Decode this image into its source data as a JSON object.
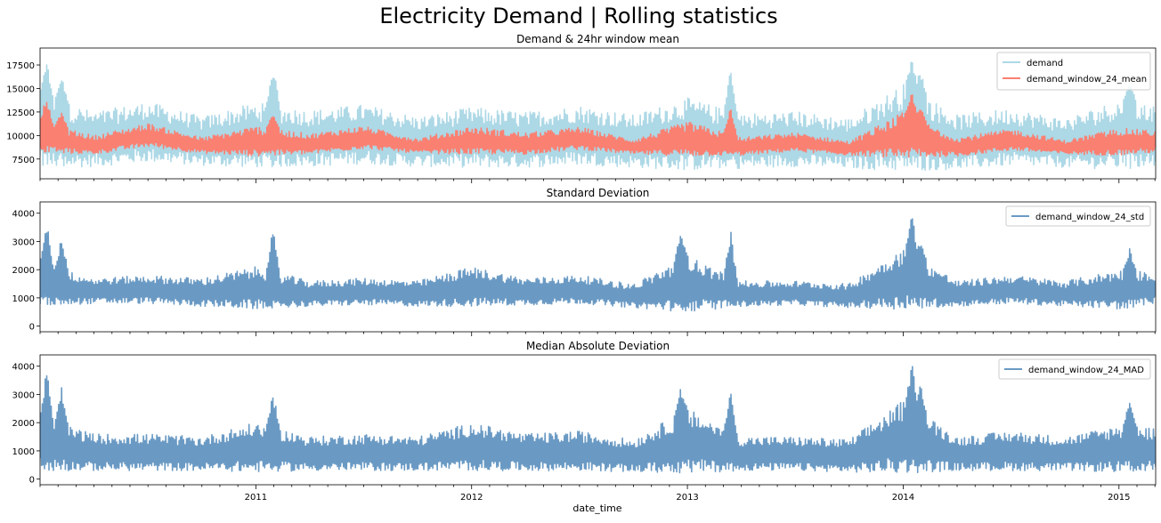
{
  "figure": {
    "suptitle": "Electricity Demand | Rolling statistics",
    "xlabel": "date_time"
  },
  "colors": {
    "demand": "#add8e6",
    "mean": "#fa8072",
    "std": "#6a9ac4",
    "mad": "#6a9ac4",
    "axes": "#000000",
    "background": "#ffffff"
  },
  "chart_data": [
    {
      "type": "line",
      "title": "Demand & 24hr window mean",
      "xlabel": "",
      "ylabel": "",
      "xlim": [
        2010.0,
        2015.17
      ],
      "ylim": [
        5400,
        19300
      ],
      "yticks": [
        7500,
        10000,
        12500,
        15000,
        17500
      ],
      "ytick_labels": [
        "7500",
        "10000",
        "12500",
        "15000",
        "17500"
      ],
      "grid": false,
      "legend": "top-right",
      "series": [
        {
          "name": "demand",
          "color": "#add8e6",
          "kind": "band",
          "x": [
            2010.0,
            2010.25,
            2010.5,
            2010.75,
            2011.0,
            2011.25,
            2011.5,
            2011.75,
            2012.0,
            2012.25,
            2012.5,
            2012.75,
            2013.0,
            2013.25,
            2013.5,
            2013.75,
            2014.0,
            2014.25,
            2014.5,
            2014.75,
            2015.0,
            2015.17
          ],
          "low": [
            6500,
            6700,
            7200,
            6800,
            6600,
            6700,
            7000,
            6700,
            6600,
            6600,
            6900,
            6600,
            6300,
            6500,
            6700,
            6500,
            6200,
            6400,
            6800,
            6600,
            6400,
            6800
          ],
          "high": [
            14500,
            12500,
            13600,
            12000,
            13500,
            12700,
            13300,
            12000,
            13000,
            12500,
            13200,
            12200,
            14000,
            12300,
            12600,
            11800,
            15500,
            12200,
            12900,
            11800,
            13800,
            13200
          ],
          "peaks": [
            [
              2010.03,
              18300
            ],
            [
              2010.1,
              16600
            ],
            [
              2011.08,
              17800
            ],
            [
              2013.2,
              17600
            ],
            [
              2014.04,
              18600
            ],
            [
              2014.08,
              17200
            ],
            [
              2015.05,
              16200
            ]
          ]
        },
        {
          "name": "demand_window_24_mean",
          "color": "#fa8072",
          "kind": "line",
          "x": [
            2010.0,
            2010.25,
            2010.5,
            2010.75,
            2011.0,
            2011.25,
            2011.5,
            2011.75,
            2012.0,
            2012.25,
            2012.5,
            2012.75,
            2013.0,
            2013.25,
            2013.5,
            2013.75,
            2014.0,
            2014.25,
            2014.5,
            2014.75,
            2015.0,
            2015.17
          ],
          "low": [
            8200,
            8000,
            8800,
            8100,
            7800,
            8000,
            8600,
            8100,
            8000,
            8000,
            8500,
            8000,
            7800,
            7900,
            8300,
            7900,
            7600,
            7800,
            8400,
            8000,
            7900,
            8200
          ],
          "high": [
            11500,
            10000,
            11300,
            9800,
            11000,
            10200,
            11000,
            9700,
            11000,
            10300,
            10900,
            9600,
            11500,
            9800,
            10300,
            9400,
            12500,
            9800,
            10700,
            9500,
            10800,
            10500
          ],
          "peaks": [
            [
              2010.03,
              14500
            ],
            [
              2010.1,
              12600
            ],
            [
              2011.08,
              12800
            ],
            [
              2013.2,
              13100
            ],
            [
              2014.04,
              14700
            ],
            [
              2014.08,
              13000
            ]
          ]
        }
      ]
    },
    {
      "type": "line",
      "title": "Standard Deviation",
      "xlabel": "",
      "ylabel": "",
      "xlim": [
        2010.0,
        2015.17
      ],
      "ylim": [
        -200,
        4400
      ],
      "yticks": [
        0,
        1000,
        2000,
        3000,
        4000
      ],
      "ytick_labels": [
        "0",
        "1000",
        "2000",
        "3000",
        "4000"
      ],
      "grid": false,
      "legend": "top-right",
      "series": [
        {
          "name": "demand_window_24_std",
          "color": "#6a9ac4",
          "kind": "line",
          "x": [
            2010.0,
            2010.25,
            2010.5,
            2010.75,
            2011.0,
            2011.25,
            2011.5,
            2011.75,
            2012.0,
            2012.25,
            2012.5,
            2012.75,
            2013.0,
            2013.25,
            2013.5,
            2013.75,
            2014.0,
            2014.25,
            2014.5,
            2014.75,
            2015.0,
            2015.17
          ],
          "low": [
            700,
            800,
            800,
            700,
            600,
            700,
            750,
            700,
            700,
            750,
            800,
            650,
            500,
            700,
            750,
            650,
            600,
            700,
            800,
            700,
            600,
            800
          ],
          "high": [
            2200,
            1700,
            1800,
            1700,
            2100,
            1600,
            1700,
            1600,
            2100,
            1700,
            1800,
            1500,
            2500,
            1600,
            1600,
            1500,
            2800,
            1600,
            1800,
            1600,
            2000,
            1900
          ],
          "peaks": [
            [
              2010.03,
              4100
            ],
            [
              2010.1,
              3300
            ],
            [
              2011.08,
              3550
            ],
            [
              2012.97,
              3400
            ],
            [
              2013.2,
              3450
            ],
            [
              2014.04,
              4100
            ],
            [
              2014.08,
              3000
            ],
            [
              2015.05,
              2800
            ]
          ]
        }
      ]
    },
    {
      "type": "line",
      "title": "Median Absolute Deviation",
      "xlabel": "date_time",
      "ylabel": "",
      "xlim": [
        2010.0,
        2015.17
      ],
      "ylim": [
        -200,
        4400
      ],
      "yticks": [
        0,
        1000,
        2000,
        3000,
        4000
      ],
      "ytick_labels": [
        "0",
        "1000",
        "2000",
        "3000",
        "4000"
      ],
      "xticks": [
        2011,
        2012,
        2013,
        2014,
        2015
      ],
      "xtick_labels": [
        "2011",
        "2012",
        "2013",
        "2014",
        "2015"
      ],
      "grid": false,
      "legend": "top-right",
      "series": [
        {
          "name": "demand_window_24_MAD",
          "color": "#6a9ac4",
          "kind": "line",
          "x": [
            2010.0,
            2010.25,
            2010.5,
            2010.75,
            2011.0,
            2011.25,
            2011.5,
            2011.75,
            2012.0,
            2012.25,
            2012.5,
            2012.75,
            2013.0,
            2013.25,
            2013.5,
            2013.75,
            2014.0,
            2014.25,
            2014.5,
            2014.75,
            2015.0,
            2015.17
          ],
          "low": [
            300,
            300,
            300,
            300,
            250,
            300,
            300,
            300,
            300,
            300,
            300,
            250,
            200,
            300,
            300,
            250,
            200,
            300,
            300,
            300,
            250,
            300
          ],
          "high": [
            2200,
            1600,
            1600,
            1500,
            2000,
            1500,
            1600,
            1500,
            2000,
            1600,
            1700,
            1400,
            2500,
            1500,
            1500,
            1400,
            2800,
            1500,
            1700,
            1500,
            1900,
            1800
          ],
          "peaks": [
            [
              2010.03,
              4100
            ],
            [
              2010.1,
              3350
            ],
            [
              2011.08,
              3200
            ],
            [
              2012.97,
              3300
            ],
            [
              2013.2,
              3400
            ],
            [
              2014.04,
              4200
            ],
            [
              2014.08,
              3400
            ],
            [
              2015.05,
              2900
            ]
          ]
        }
      ]
    }
  ]
}
